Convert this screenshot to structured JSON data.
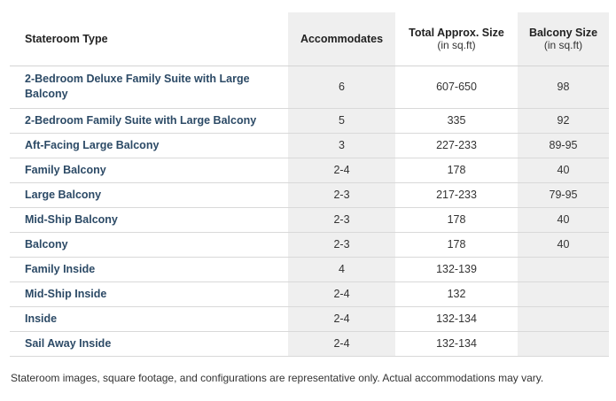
{
  "table": {
    "headers": {
      "stateroom_type": "Stateroom Type",
      "accommodates": "Accommodates",
      "total_size": "Total Approx. Size",
      "total_size_unit": "(in sq.ft)",
      "balcony_size": "Balcony Size",
      "balcony_size_unit": "(in sq.ft)"
    },
    "rows": [
      {
        "type": "2-Bedroom Deluxe Family Suite with Large Balcony",
        "accommodates": "6",
        "total_size": "607-650",
        "balcony_size": "98"
      },
      {
        "type": "2-Bedroom Family Suite with Large Balcony",
        "accommodates": "5",
        "total_size": "335",
        "balcony_size": "92"
      },
      {
        "type": "Aft-Facing Large Balcony",
        "accommodates": "3",
        "total_size": "227-233",
        "balcony_size": "89-95"
      },
      {
        "type": "Family Balcony",
        "accommodates": "2-4",
        "total_size": "178",
        "balcony_size": "40"
      },
      {
        "type": "Large Balcony",
        "accommodates": "2-3",
        "total_size": "217-233",
        "balcony_size": "79-95"
      },
      {
        "type": "Mid-Ship Balcony",
        "accommodates": "2-3",
        "total_size": "178",
        "balcony_size": "40"
      },
      {
        "type": "Balcony",
        "accommodates": "2-3",
        "total_size": "178",
        "balcony_size": "40"
      },
      {
        "type": "Family Inside",
        "accommodates": "4",
        "total_size": "132-139",
        "balcony_size": ""
      },
      {
        "type": "Mid-Ship Inside",
        "accommodates": "2-4",
        "total_size": "132",
        "balcony_size": ""
      },
      {
        "type": "Inside",
        "accommodates": "2-4",
        "total_size": "132-134",
        "balcony_size": ""
      },
      {
        "type": "Sail Away Inside",
        "accommodates": "2-4",
        "total_size": "132-134",
        "balcony_size": ""
      }
    ]
  },
  "footnote": "Stateroom images, square footage, and configurations are representative only. Actual accommodations may vary.",
  "colors": {
    "shaded_column": "#efefef",
    "link_text": "#2c4a66",
    "row_divider": "#d9d9d9"
  }
}
